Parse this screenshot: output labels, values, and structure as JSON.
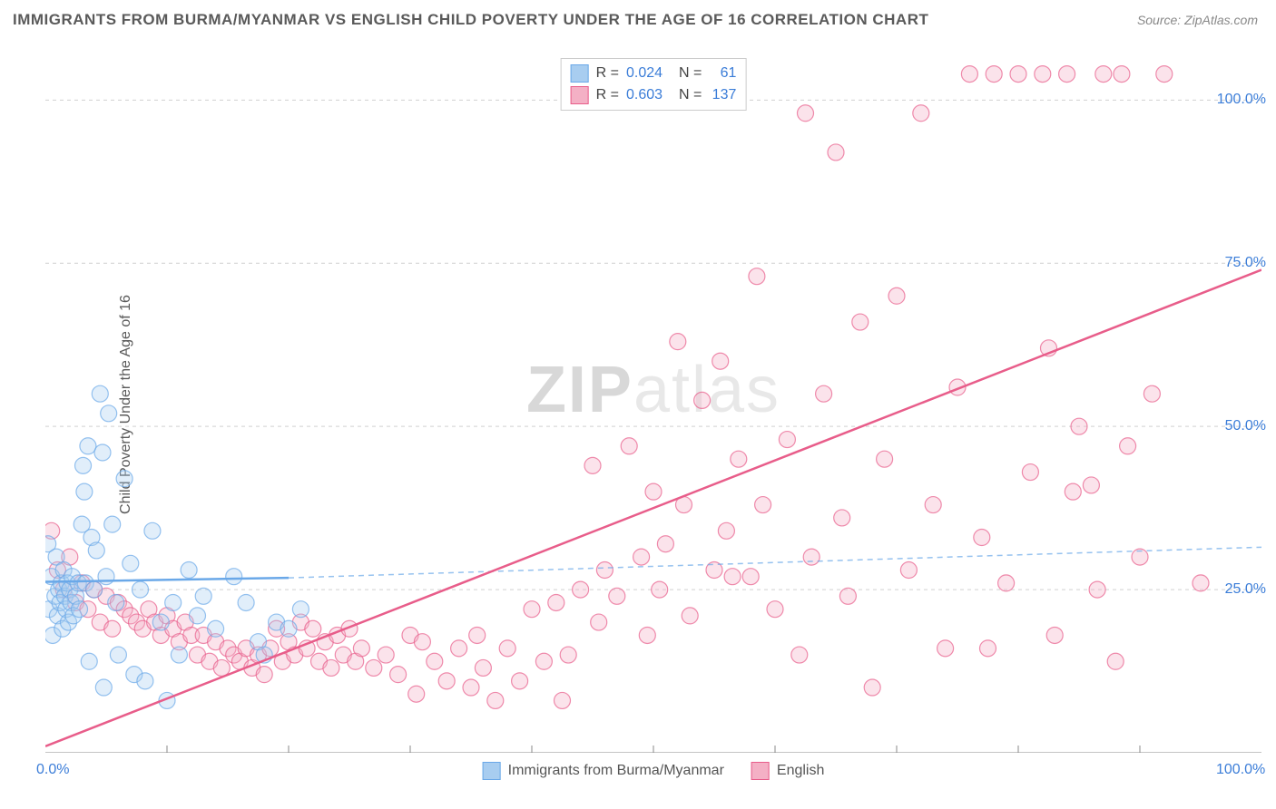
{
  "title": "IMMIGRANTS FROM BURMA/MYANMAR VS ENGLISH CHILD POVERTY UNDER THE AGE OF 16 CORRELATION CHART",
  "source": "Source: ZipAtlas.com",
  "yaxis_label": "Child Poverty Under the Age of 16",
  "watermark": {
    "zip": "ZIP",
    "atlas": "atlas"
  },
  "chart": {
    "type": "scatter",
    "xlim": [
      0,
      100
    ],
    "ylim": [
      0,
      107
    ],
    "xticks": [
      0,
      100
    ],
    "xtick_labels": [
      "0.0%",
      "100.0%"
    ],
    "yticks": [
      25,
      50,
      75,
      100
    ],
    "ytick_labels": [
      "25.0%",
      "50.0%",
      "75.0%",
      "100.0%"
    ],
    "x_minor_ticks": [
      10,
      20,
      30,
      40,
      50,
      60,
      70,
      80,
      90
    ],
    "grid_color": "#d0d0d0",
    "axis_color": "#888",
    "background": "#ffffff",
    "marker_radius": 9,
    "marker_opacity": 0.35,
    "series": [
      {
        "name": "Immigrants from Burma/Myanmar",
        "color": "#6aa8e8",
        "fill": "#a8cdf0",
        "R": "0.024",
        "N": "61",
        "trend": {
          "solid_from": [
            0,
            26.2
          ],
          "solid_to": [
            20,
            26.8
          ],
          "dash_to": [
            100,
            31.5
          ],
          "width": 2.5
        },
        "points": [
          [
            0.2,
            32
          ],
          [
            0.3,
            22
          ],
          [
            0.5,
            27
          ],
          [
            0.6,
            18
          ],
          [
            0.8,
            24
          ],
          [
            0.9,
            30
          ],
          [
            1.0,
            21
          ],
          [
            1.1,
            25
          ],
          [
            1.2,
            23
          ],
          [
            1.3,
            26
          ],
          [
            1.4,
            19
          ],
          [
            1.5,
            28
          ],
          [
            1.6,
            24
          ],
          [
            1.7,
            22
          ],
          [
            1.8,
            26
          ],
          [
            1.9,
            20
          ],
          [
            2.0,
            25
          ],
          [
            2.1,
            23
          ],
          [
            2.2,
            27
          ],
          [
            2.3,
            21
          ],
          [
            2.5,
            24
          ],
          [
            2.7,
            26
          ],
          [
            2.8,
            22
          ],
          [
            3.0,
            35
          ],
          [
            3.1,
            44
          ],
          [
            3.2,
            40
          ],
          [
            3.3,
            26
          ],
          [
            3.5,
            47
          ],
          [
            3.6,
            14
          ],
          [
            3.8,
            33
          ],
          [
            4.0,
            25
          ],
          [
            4.2,
            31
          ],
          [
            4.5,
            55
          ],
          [
            4.7,
            46
          ],
          [
            4.8,
            10
          ],
          [
            5.0,
            27
          ],
          [
            5.2,
            52
          ],
          [
            5.5,
            35
          ],
          [
            5.8,
            23
          ],
          [
            6.0,
            15
          ],
          [
            6.5,
            42
          ],
          [
            7.0,
            29
          ],
          [
            7.3,
            12
          ],
          [
            7.8,
            25
          ],
          [
            8.2,
            11
          ],
          [
            8.8,
            34
          ],
          [
            9.5,
            20
          ],
          [
            10.0,
            8
          ],
          [
            10.5,
            23
          ],
          [
            11.0,
            15
          ],
          [
            11.8,
            28
          ],
          [
            12.5,
            21
          ],
          [
            13.0,
            24
          ],
          [
            14.0,
            19
          ],
          [
            15.5,
            27
          ],
          [
            16.5,
            23
          ],
          [
            17.5,
            17
          ],
          [
            18.0,
            15
          ],
          [
            19.0,
            20
          ],
          [
            20.0,
            19
          ],
          [
            21.0,
            22
          ]
        ]
      },
      {
        "name": "English",
        "color": "#e85d8a",
        "fill": "#f4b0c5",
        "R": "0.603",
        "N": "137",
        "trend": {
          "solid_from": [
            0,
            1
          ],
          "solid_to": [
            100,
            74
          ],
          "width": 2.5
        },
        "points": [
          [
            0.5,
            34
          ],
          [
            1.0,
            28
          ],
          [
            1.5,
            25
          ],
          [
            2.0,
            30
          ],
          [
            2.5,
            23
          ],
          [
            3.0,
            26
          ],
          [
            3.5,
            22
          ],
          [
            4.0,
            25
          ],
          [
            4.5,
            20
          ],
          [
            5.0,
            24
          ],
          [
            5.5,
            19
          ],
          [
            6.0,
            23
          ],
          [
            6.5,
            22
          ],
          [
            7.0,
            21
          ],
          [
            7.5,
            20
          ],
          [
            8.0,
            19
          ],
          [
            8.5,
            22
          ],
          [
            9.0,
            20
          ],
          [
            9.5,
            18
          ],
          [
            10.0,
            21
          ],
          [
            10.5,
            19
          ],
          [
            11.0,
            17
          ],
          [
            11.5,
            20
          ],
          [
            12.0,
            18
          ],
          [
            12.5,
            15
          ],
          [
            13.0,
            18
          ],
          [
            13.5,
            14
          ],
          [
            14.0,
            17
          ],
          [
            14.5,
            13
          ],
          [
            15.0,
            16
          ],
          [
            15.5,
            15
          ],
          [
            16.0,
            14
          ],
          [
            16.5,
            16
          ],
          [
            17.0,
            13
          ],
          [
            17.5,
            15
          ],
          [
            18.0,
            12
          ],
          [
            18.5,
            16
          ],
          [
            19.0,
            19
          ],
          [
            19.5,
            14
          ],
          [
            20.0,
            17
          ],
          [
            20.5,
            15
          ],
          [
            21.0,
            20
          ],
          [
            21.5,
            16
          ],
          [
            22.0,
            19
          ],
          [
            22.5,
            14
          ],
          [
            23.0,
            17
          ],
          [
            23.5,
            13
          ],
          [
            24.0,
            18
          ],
          [
            24.5,
            15
          ],
          [
            25.0,
            19
          ],
          [
            25.5,
            14
          ],
          [
            26.0,
            16
          ],
          [
            27.0,
            13
          ],
          [
            28.0,
            15
          ],
          [
            29.0,
            12
          ],
          [
            30.0,
            18
          ],
          [
            30.5,
            9
          ],
          [
            31.0,
            17
          ],
          [
            32.0,
            14
          ],
          [
            33.0,
            11
          ],
          [
            34.0,
            16
          ],
          [
            35.0,
            10
          ],
          [
            35.5,
            18
          ],
          [
            36.0,
            13
          ],
          [
            37.0,
            8
          ],
          [
            38.0,
            16
          ],
          [
            39.0,
            11
          ],
          [
            40.0,
            22
          ],
          [
            41.0,
            14
          ],
          [
            42.0,
            23
          ],
          [
            43.0,
            15
          ],
          [
            44.0,
            25
          ],
          [
            45.0,
            44
          ],
          [
            45.5,
            20
          ],
          [
            46.0,
            28
          ],
          [
            47.0,
            24
          ],
          [
            48.0,
            47
          ],
          [
            49.0,
            30
          ],
          [
            50.0,
            40
          ],
          [
            50.5,
            25
          ],
          [
            51.0,
            32
          ],
          [
            52.0,
            63
          ],
          [
            53.0,
            21
          ],
          [
            54.0,
            54
          ],
          [
            55.0,
            28
          ],
          [
            55.5,
            60
          ],
          [
            56.0,
            34
          ],
          [
            57.0,
            45
          ],
          [
            58.0,
            27
          ],
          [
            58.5,
            73
          ],
          [
            59.0,
            38
          ],
          [
            60.0,
            22
          ],
          [
            61.0,
            48
          ],
          [
            62.0,
            15
          ],
          [
            63.0,
            30
          ],
          [
            64.0,
            55
          ],
          [
            65.0,
            92
          ],
          [
            65.5,
            36
          ],
          [
            66.0,
            24
          ],
          [
            67.0,
            66
          ],
          [
            68.0,
            10
          ],
          [
            69.0,
            45
          ],
          [
            70.0,
            70
          ],
          [
            71.0,
            28
          ],
          [
            72.0,
            98
          ],
          [
            73.0,
            38
          ],
          [
            74.0,
            16
          ],
          [
            75.0,
            56
          ],
          [
            76.0,
            104
          ],
          [
            77.0,
            33
          ],
          [
            78.0,
            104
          ],
          [
            79.0,
            26
          ],
          [
            80.0,
            104
          ],
          [
            81.0,
            43
          ],
          [
            82.0,
            104
          ],
          [
            83.0,
            18
          ],
          [
            84.0,
            104
          ],
          [
            85.0,
            50
          ],
          [
            86.0,
            41
          ],
          [
            87.0,
            104
          ],
          [
            88.0,
            14
          ],
          [
            89.0,
            47
          ],
          [
            90.0,
            30
          ],
          [
            91.0,
            55
          ],
          [
            92.0,
            104
          ],
          [
            95.0,
            26
          ],
          [
            82.5,
            62
          ],
          [
            84.5,
            40
          ],
          [
            86.5,
            25
          ],
          [
            88.5,
            104
          ],
          [
            49.5,
            18
          ],
          [
            52.5,
            38
          ],
          [
            56.5,
            27
          ],
          [
            62.5,
            98
          ],
          [
            77.5,
            16
          ],
          [
            42.5,
            8
          ]
        ]
      }
    ]
  },
  "legend_bottom": [
    {
      "label": "Immigrants from Burma/Myanmar",
      "fill": "#a8cdf0",
      "border": "#6aa8e8"
    },
    {
      "label": "English",
      "fill": "#f4b0c5",
      "border": "#e85d8a"
    }
  ]
}
